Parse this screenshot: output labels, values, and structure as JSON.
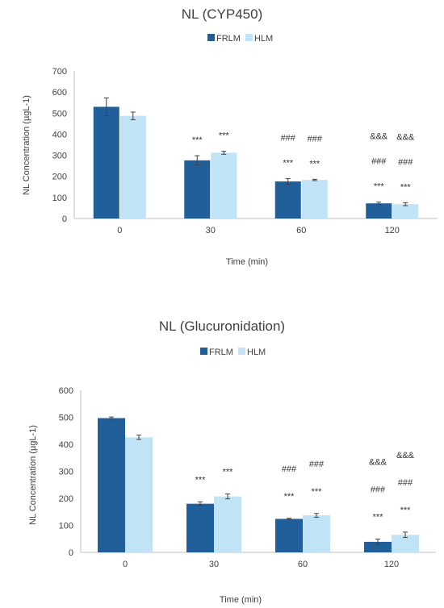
{
  "colors": {
    "FRLM": "#215f9a",
    "HLM": "#c0e4f5",
    "axis": "#bfbfbf",
    "error": "#404040"
  },
  "chart_data": [
    {
      "type": "bar",
      "title": "NL (CYP450)",
      "xlabel": "Time (min)",
      "ylabel": "NL Concentration (µgL-1)",
      "ylim": [
        0,
        700
      ],
      "yticks": [
        "0",
        "100",
        "200",
        "300",
        "400",
        "500",
        "600",
        "700"
      ],
      "categories": [
        "0",
        "30",
        "60",
        "120"
      ],
      "legend_position": "top",
      "grid": false,
      "series": [
        {
          "name": "FRLM",
          "values": [
            530,
            276,
            176,
            72
          ],
          "errors": [
            42,
            22,
            13,
            6
          ],
          "annotations": [
            [],
            [
              "***"
            ],
            [
              "***",
              "###"
            ],
            [
              "***",
              "###",
              "&&&"
            ]
          ]
        },
        {
          "name": "HLM",
          "values": [
            487,
            312,
            183,
            68
          ],
          "errors": [
            18,
            7,
            3,
            7
          ],
          "annotations": [
            [],
            [
              "***"
            ],
            [
              "***",
              "###"
            ],
            [
              "***",
              "###",
              "&&&"
            ]
          ]
        }
      ]
    },
    {
      "type": "bar",
      "title": "NL (Glucuronidation)",
      "xlabel": "Time (min)",
      "ylabel": "NL Concentration (µgL-1)",
      "ylim": [
        0,
        600
      ],
      "yticks": [
        "0",
        "100",
        "200",
        "300",
        "400",
        "500",
        "600"
      ],
      "categories": [
        "0",
        "30",
        "60",
        "120"
      ],
      "legend_position": "top",
      "grid": false,
      "series": [
        {
          "name": "FRLM",
          "values": [
            497,
            180,
            124,
            39
          ],
          "errors": [
            4,
            7,
            2,
            10
          ],
          "annotations": [
            [],
            [
              "***"
            ],
            [
              "***",
              "###"
            ],
            [
              "***",
              "###",
              "&&&"
            ]
          ]
        },
        {
          "name": "HLM",
          "values": [
            426,
            207,
            137,
            65
          ],
          "errors": [
            8,
            9,
            7,
            10
          ],
          "annotations": [
            [],
            [
              "***"
            ],
            [
              "***",
              "###"
            ],
            [
              "***",
              "###",
              "&&&"
            ]
          ]
        }
      ]
    }
  ]
}
